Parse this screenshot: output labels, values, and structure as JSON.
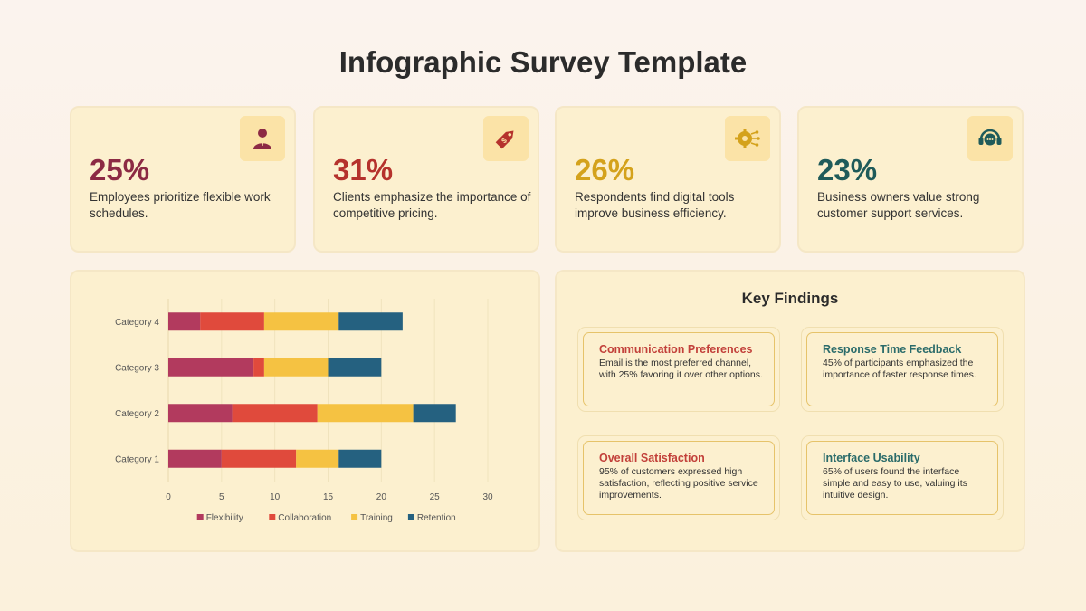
{
  "title": "Infographic Survey Template",
  "stats": [
    {
      "value": "25%",
      "desc": "Employees prioritize flexible work schedules.",
      "color": "#8c2a44",
      "icon": "person-icon"
    },
    {
      "value": "31%",
      "desc": "Clients emphasize the importance of competitive pricing.",
      "color": "#b5322c",
      "icon": "price-tag-icon"
    },
    {
      "value": "26%",
      "desc": "Respondents find digital tools improve business efficiency.",
      "color": "#d4a21c",
      "icon": "gear-circuit-icon"
    },
    {
      "value": "23%",
      "desc": "Business owners value strong customer support services.",
      "color": "#1f5b5a",
      "icon": "headset-icon"
    }
  ],
  "chart_data": {
    "type": "bar",
    "orientation": "horizontal",
    "stacked": true,
    "categories": [
      "Category 1",
      "Category 2",
      "Category 3",
      "Category 4"
    ],
    "series": [
      {
        "name": "Flexibility",
        "color": "#b23a5e",
        "values": [
          5,
          6,
          8,
          3
        ]
      },
      {
        "name": "Collaboration",
        "color": "#e04a3c",
        "values": [
          7,
          8,
          1,
          6
        ]
      },
      {
        "name": "Training",
        "color": "#f5c242",
        "values": [
          4,
          9,
          6,
          7
        ]
      },
      {
        "name": "Retention",
        "color": "#256180",
        "values": [
          4,
          4,
          5,
          6
        ]
      }
    ],
    "xlim": [
      0,
      30
    ],
    "xticks": [
      "0",
      "5",
      "10",
      "15",
      "20",
      "25",
      "30"
    ],
    "grid": true,
    "legend": "bottom"
  },
  "findings": {
    "title": "Key Findings",
    "items": [
      {
        "head": "Communication Preferences",
        "body": "Email is the most preferred channel, with 25% favoring it over other options.",
        "color": "#c2403a"
      },
      {
        "head": "Response Time Feedback",
        "body": "45% of participants emphasized the importance of faster response times.",
        "color": "#2a6b6a"
      },
      {
        "head": "Overall Satisfaction",
        "body": "95% of customers expressed high satisfaction, reflecting positive service improvements.",
        "color": "#c2403a"
      },
      {
        "head": "Interface Usability",
        "body": "65% of users found the interface simple and easy to use, valuing its intuitive design.",
        "color": "#2a6b6a"
      }
    ]
  }
}
